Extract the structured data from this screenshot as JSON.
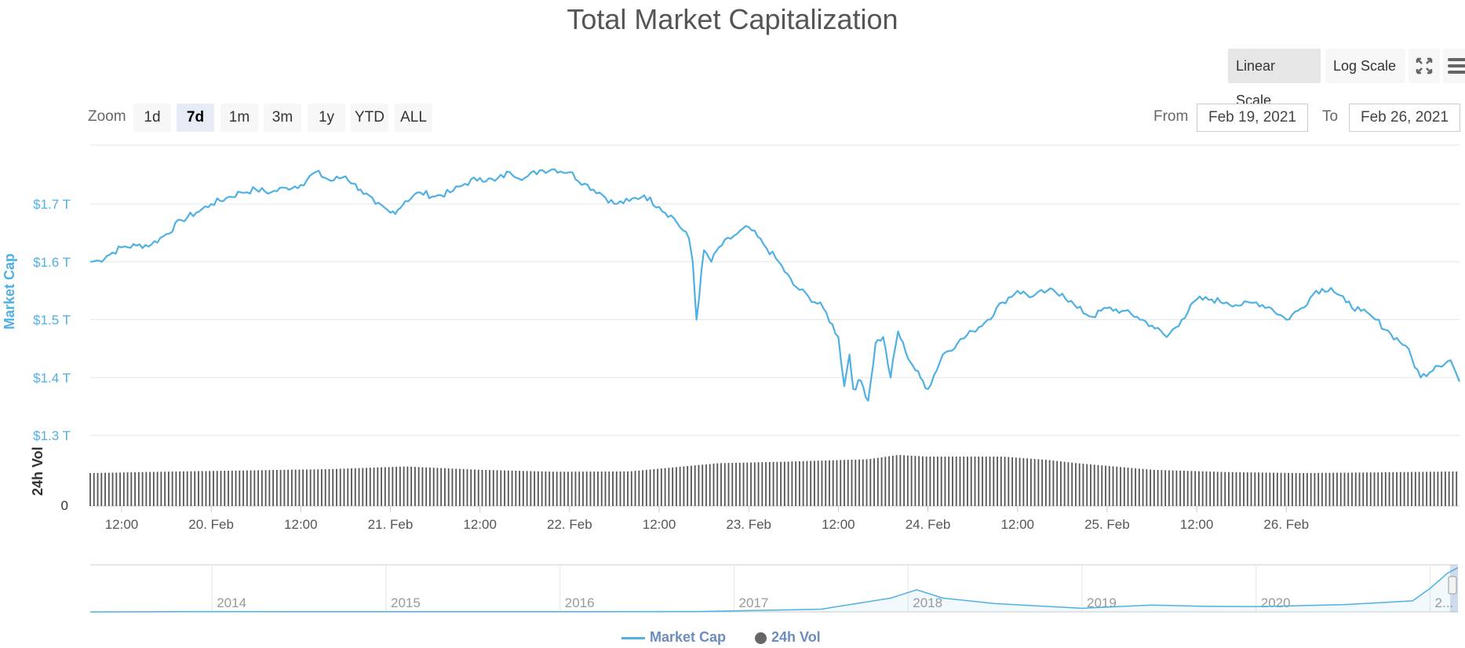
{
  "title": "Total Market Capitalization",
  "scale_buttons": [
    {
      "label": "Linear Scale",
      "active": true
    },
    {
      "label": "Log Scale",
      "active": false
    }
  ],
  "icons": [
    "fullscreen-icon",
    "menu-icon"
  ],
  "zoom": {
    "label": "Zoom",
    "buttons": [
      "1d",
      "7d",
      "1m",
      "3m",
      "1y",
      "YTD",
      "ALL"
    ],
    "active": "7d"
  },
  "range": {
    "from_label": "From",
    "from_value": "Feb 19, 2021",
    "to_label": "To",
    "to_value": "Feb 26, 2021"
  },
  "legend": [
    {
      "label": "Market Cap",
      "color": "#4fb0e3"
    },
    {
      "label": "24h Vol",
      "color": "#666666"
    }
  ],
  "colors": {
    "line": "#4fb0e3",
    "volume": "#555555",
    "grid": "#e6e6e6"
  },
  "chart_data": [
    {
      "type": "line",
      "title": "Total Market Capitalization",
      "ylabel": "Market Cap",
      "yunit": "USD trillions",
      "ylim": [
        1.3,
        1.8
      ],
      "yticks": [
        "$1.3 T",
        "$1.4 T",
        "$1.5 T",
        "$1.6 T",
        "$1.7 T"
      ],
      "ytick_values": [
        1.3,
        1.4,
        1.5,
        1.6,
        1.7
      ],
      "xticks": [
        "12:00",
        "20. Feb",
        "12:00",
        "21. Feb",
        "12:00",
        "22. Feb",
        "12:00",
        "23. Feb",
        "12:00",
        "24. Feb",
        "12:00",
        "25. Feb",
        "12:00",
        "26. Feb"
      ],
      "xtick_hours": [
        12,
        24,
        36,
        48,
        60,
        72,
        84,
        96,
        108,
        120,
        132,
        144,
        156,
        168
      ],
      "xlim_hours": [
        7.8,
        191.2
      ],
      "x_hours_from": "Feb 19, 2021 00:00",
      "series": [
        {
          "name": "Market Cap",
          "x": [
            7.8,
            9,
            10,
            12,
            14,
            16,
            18,
            20,
            22,
            24,
            26,
            28,
            30,
            32,
            34,
            36,
            38,
            40,
            42,
            43,
            44,
            46,
            48,
            49,
            50,
            52,
            54,
            56,
            58,
            60,
            62,
            64,
            66,
            68,
            70,
            72,
            74,
            76,
            78,
            80,
            82,
            84,
            86,
            88,
            88.5,
            89,
            90,
            91,
            92,
            94,
            96,
            98,
            100,
            102,
            104,
            106,
            108,
            108.8,
            109.5,
            110,
            111,
            112,
            113,
            114,
            115,
            116,
            117,
            118,
            119,
            120,
            122,
            124,
            126,
            128,
            130,
            132,
            134,
            136,
            138,
            140,
            142,
            144,
            146,
            148,
            150,
            152,
            154,
            156,
            158,
            160,
            162,
            164,
            166,
            168,
            170,
            172,
            174,
            176,
            178,
            180,
            182,
            184,
            186,
            188,
            190,
            191.2
          ],
          "y": [
            1.6,
            1.602,
            1.61,
            1.625,
            1.628,
            1.63,
            1.648,
            1.672,
            1.685,
            1.7,
            1.71,
            1.72,
            1.725,
            1.72,
            1.728,
            1.733,
            1.755,
            1.74,
            1.748,
            1.735,
            1.725,
            1.7,
            1.685,
            1.69,
            1.705,
            1.72,
            1.713,
            1.72,
            1.735,
            1.745,
            1.74,
            1.755,
            1.745,
            1.758,
            1.76,
            1.755,
            1.735,
            1.72,
            1.7,
            1.705,
            1.715,
            1.695,
            1.675,
            1.64,
            1.6,
            1.5,
            1.62,
            1.6,
            1.625,
            1.645,
            1.66,
            1.63,
            1.6,
            1.56,
            1.54,
            1.52,
            1.47,
            1.385,
            1.44,
            1.38,
            1.395,
            1.36,
            1.46,
            1.47,
            1.4,
            1.48,
            1.445,
            1.42,
            1.4,
            1.38,
            1.44,
            1.46,
            1.48,
            1.5,
            1.53,
            1.55,
            1.54,
            1.55,
            1.545,
            1.52,
            1.505,
            1.52,
            1.515,
            1.505,
            1.49,
            1.47,
            1.5,
            1.535,
            1.535,
            1.53,
            1.525,
            1.53,
            1.52,
            1.5,
            1.52,
            1.55,
            1.555,
            1.53,
            1.515,
            1.5,
            1.475,
            1.455,
            1.4,
            1.42,
            1.43,
            1.393
          ]
        }
      ]
    },
    {
      "type": "bar",
      "ylabel": "24h Vol",
      "yticks": [
        "0"
      ],
      "x": [
        7.8,
        20,
        40,
        50,
        60,
        70,
        80,
        92,
        100,
        112,
        116,
        120,
        126,
        130,
        136,
        140,
        150,
        160,
        170,
        180,
        191.2
      ],
      "values": [
        1,
        1.05,
        1.12,
        1.2,
        1.1,
        1.04,
        1.05,
        1.3,
        1.34,
        1.42,
        1.55,
        1.5,
        1.5,
        1.5,
        1.4,
        1.3,
        1.1,
        1.03,
        1.0,
        1.02,
        1.05
      ],
      "series_name": "24h Vol"
    },
    {
      "type": "area",
      "role": "navigator",
      "xticks": [
        "2014",
        "2015",
        "2016",
        "2017",
        "2018",
        "2019",
        "2020",
        "2..."
      ],
      "x": [
        2013.3,
        2014,
        2015,
        2016,
        2016.8,
        2017.5,
        2017.9,
        2018.05,
        2018.2,
        2018.5,
        2019,
        2019.4,
        2019.7,
        2020,
        2020.5,
        2020.9,
        2021.0,
        2021.1,
        2021.16
      ],
      "values": [
        0.001,
        0.01,
        0.005,
        0.007,
        0.015,
        0.1,
        0.5,
        0.8,
        0.5,
        0.3,
        0.13,
        0.25,
        0.2,
        0.19,
        0.26,
        0.4,
        0.85,
        1.4,
        1.6
      ]
    }
  ]
}
